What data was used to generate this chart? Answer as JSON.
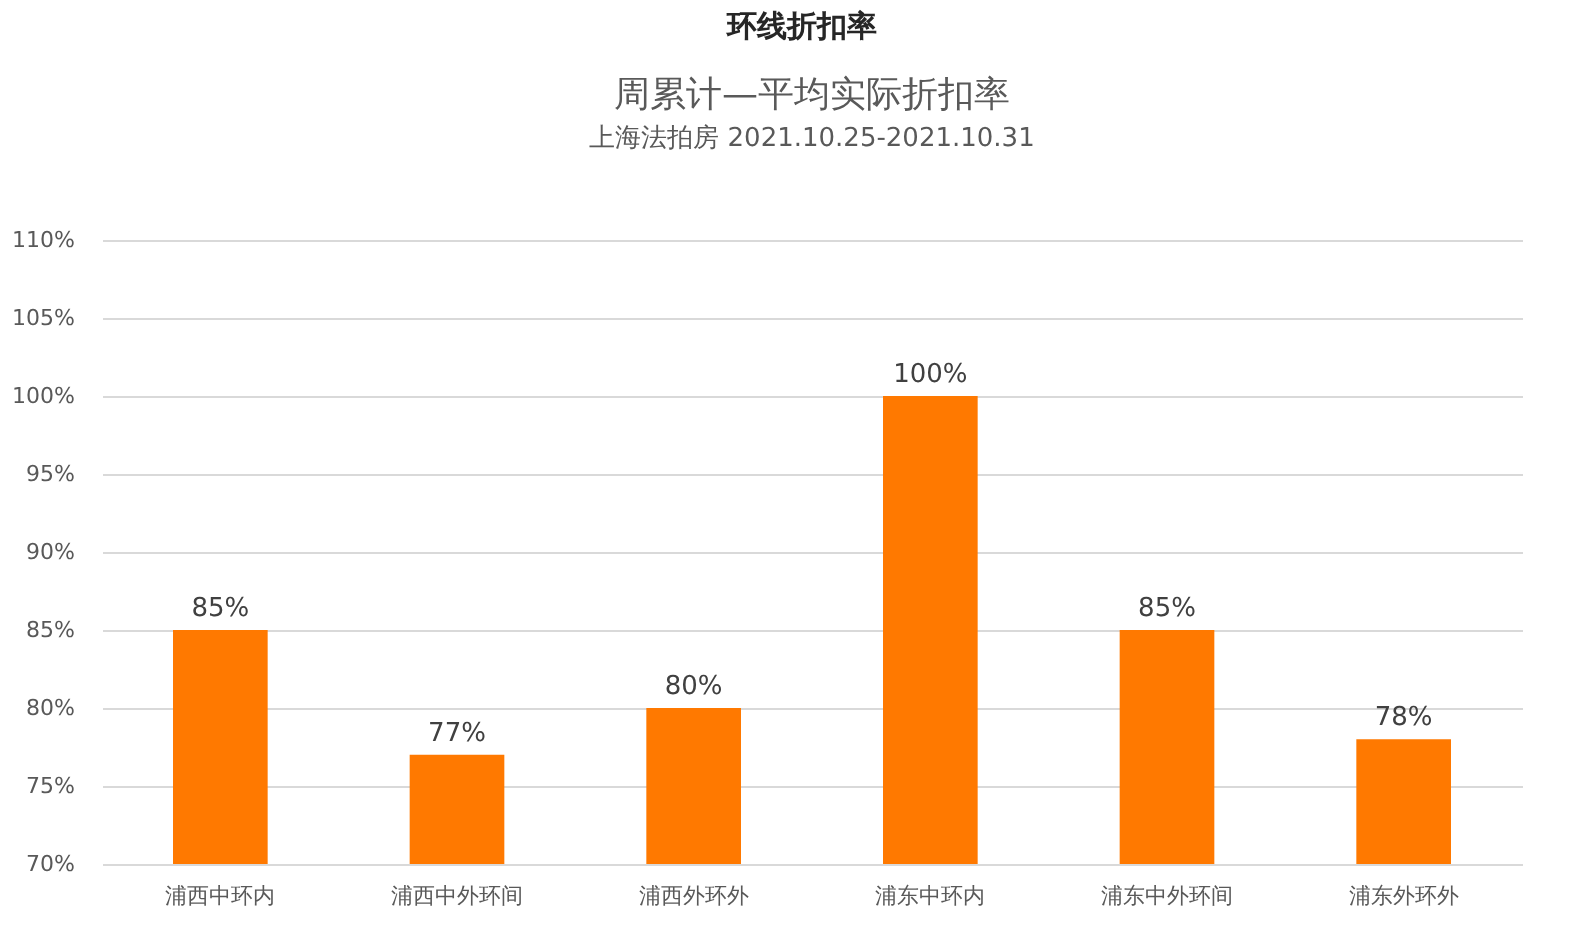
{
  "chart_data": {
    "type": "bar",
    "title": "周累计—平均实际折扣率",
    "subtitle": "上海法拍房 2021.10.25-2021.10.31",
    "annotations": [
      "环线折扣率"
    ],
    "categories": [
      "浦西中环内",
      "浦西中外环间",
      "浦西外环外",
      "浦东中环内",
      "浦东中外环间",
      "浦东外环外"
    ],
    "values": [
      85,
      77,
      80,
      100,
      85,
      78
    ],
    "color": "#ff7900",
    "value_labels": [
      "85%",
      "77%",
      "80%",
      "100%",
      "85%",
      "78%"
    ],
    "ylim": [
      70,
      110
    ],
    "yticks": [
      {
        "value": 70,
        "label": "70%"
      },
      {
        "value": 75,
        "label": "75%"
      },
      {
        "value": 80,
        "label": "80%"
      },
      {
        "value": 85,
        "label": "85%"
      },
      {
        "value": 90,
        "label": "90%"
      },
      {
        "value": 95,
        "label": "95%"
      },
      {
        "value": 100,
        "label": "100%"
      },
      {
        "value": 105,
        "label": "105%"
      },
      {
        "value": 110,
        "label": "110%"
      }
    ],
    "grid": "y"
  }
}
